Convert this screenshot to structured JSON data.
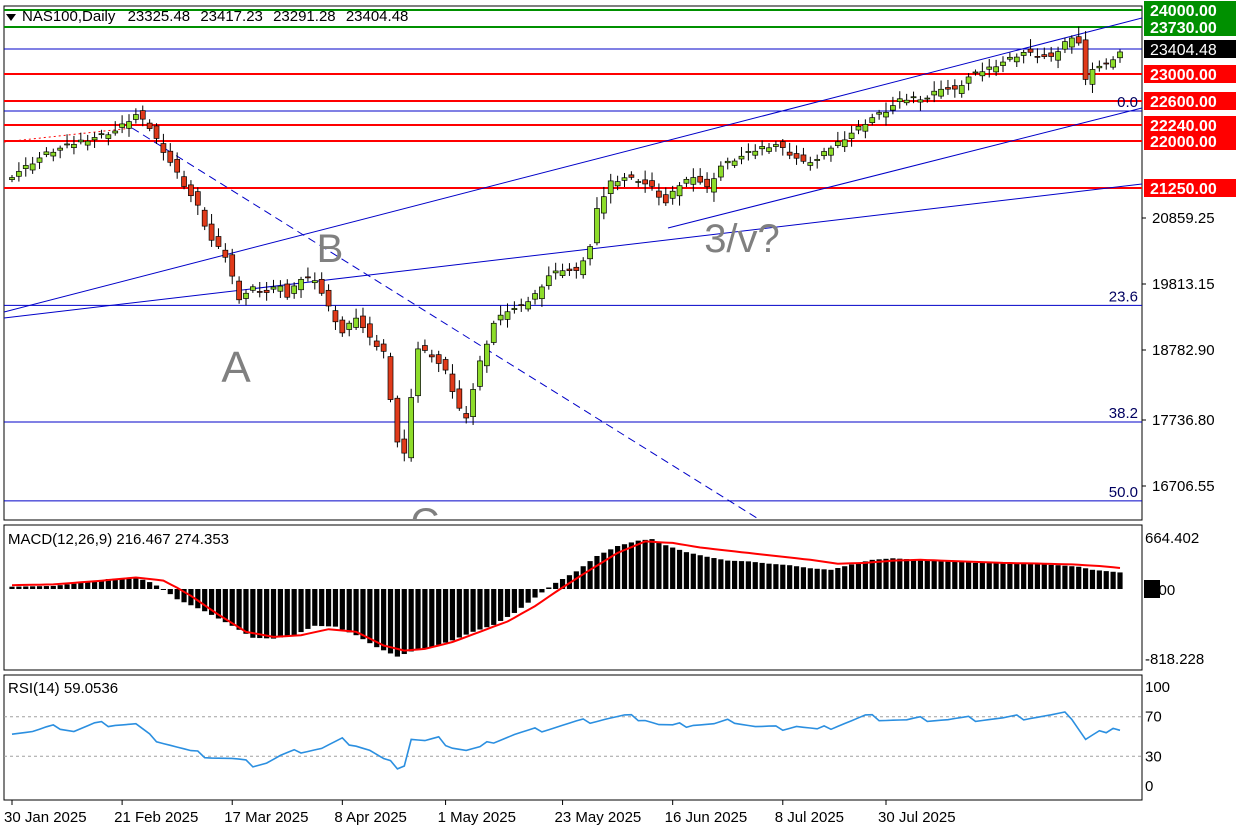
{
  "header": {
    "symbol": "NAS100,Daily",
    "ohlc": [
      "23325.48",
      "23417.23",
      "23291.28",
      "23404.48"
    ]
  },
  "colors": {
    "bull": "#8ddc2a",
    "bear": "#e03a1a",
    "level": "#ff0000",
    "resistance": "#009000",
    "trend": "#0000c8",
    "macd_signal": "#ff0000",
    "rsi": "#2b8fe0",
    "current": "#000000"
  },
  "chart_data": [
    {
      "type": "candlestick",
      "title": "NAS100,Daily",
      "ylim": [
        16450,
        24300
      ],
      "x_ticks": [
        "30 Jan 2025",
        "21 Feb 2025",
        "17 Mar 2025",
        "8 Apr 2025",
        "1 May 2025",
        "23 May 2025",
        "16 Jun 2025",
        "8 Jul 2025",
        "30 Jul 2025"
      ],
      "y_tick_labels": [
        "20859.25",
        "19813.15",
        "18782.90",
        "17736.80",
        "16706.55"
      ],
      "y_ticks": [
        20859.25,
        19813.15,
        18782.9,
        17736.8,
        16706.55
      ],
      "current_price": {
        "label": "23404.48",
        "value": 23404.48
      },
      "levels": [
        {
          "label": "24000.00",
          "value": 24000,
          "kind": "resistance"
        },
        {
          "label": "23730.00",
          "value": 23730,
          "kind": "resistance"
        },
        {
          "label": "23000.00",
          "value": 23000,
          "kind": "level"
        },
        {
          "label": "22600.00",
          "value": 22600,
          "kind": "level"
        },
        {
          "label": "22240.00",
          "value": 22240,
          "kind": "level"
        },
        {
          "label": "22000.00",
          "value": 22000,
          "kind": "level"
        },
        {
          "label": "21250.00",
          "value": 21250,
          "kind": "level"
        }
      ],
      "fib_levels": [
        {
          "label": "0.0",
          "value": 22450
        },
        {
          "label": "23.6",
          "value": 19480
        },
        {
          "label": "38.2",
          "value": 17705
        },
        {
          "label": "50.0",
          "value": 16560
        }
      ],
      "wave_labels": [
        "A",
        "B",
        "C",
        "3/v?"
      ],
      "close_path": [
        [
          0,
          21450
        ],
        [
          5,
          21800
        ],
        [
          10,
          22000
        ],
        [
          15,
          22150
        ],
        [
          18,
          22390
        ],
        [
          20,
          22200
        ],
        [
          22,
          21850
        ],
        [
          25,
          21300
        ],
        [
          27,
          21000
        ],
        [
          29,
          20500
        ],
        [
          31,
          20250
        ],
        [
          33,
          19600
        ],
        [
          35,
          19750
        ],
        [
          37,
          19680
        ],
        [
          39,
          19800
        ],
        [
          40,
          19600
        ],
        [
          42,
          19900
        ],
        [
          44,
          19900
        ],
        [
          46,
          19450
        ],
        [
          48,
          19050
        ],
        [
          50,
          19300
        ],
        [
          52,
          18950
        ],
        [
          54,
          18750
        ],
        [
          56,
          17400
        ],
        [
          57,
          17200
        ],
        [
          58,
          18100
        ],
        [
          59,
          18800
        ],
        [
          61,
          18700
        ],
        [
          63,
          18450
        ],
        [
          65,
          17900
        ],
        [
          66,
          17800
        ],
        [
          68,
          18600
        ],
        [
          70,
          19200
        ],
        [
          72,
          19400
        ],
        [
          74,
          19450
        ],
        [
          76,
          19650
        ],
        [
          78,
          19950
        ],
        [
          80,
          20050
        ],
        [
          82,
          20000
        ],
        [
          84,
          20400
        ],
        [
          85,
          20950
        ],
        [
          87,
          21350
        ],
        [
          89,
          21420
        ],
        [
          91,
          21380
        ],
        [
          93,
          21250
        ],
        [
          95,
          21050
        ],
        [
          97,
          21300
        ],
        [
          99,
          21450
        ],
        [
          101,
          21250
        ],
        [
          103,
          21600
        ],
        [
          105,
          21700
        ],
        [
          107,
          21800
        ],
        [
          109,
          21900
        ],
        [
          111,
          21950
        ],
        [
          113,
          21800
        ],
        [
          115,
          21650
        ],
        [
          117,
          21700
        ],
        [
          119,
          21900
        ],
        [
          121,
          22050
        ],
        [
          123,
          22200
        ],
        [
          125,
          22350
        ],
        [
          127,
          22450
        ],
        [
          129,
          22600
        ],
        [
          131,
          22650
        ],
        [
          133,
          22650
        ],
        [
          135,
          22800
        ],
        [
          137,
          22750
        ],
        [
          139,
          22950
        ],
        [
          141,
          23050
        ],
        [
          143,
          23150
        ],
        [
          145,
          23250
        ],
        [
          147,
          23350
        ],
        [
          149,
          23300
        ],
        [
          151,
          23250
        ],
        [
          153,
          23500
        ],
        [
          154,
          23600
        ],
        [
          155,
          23500
        ],
        [
          156,
          22900
        ],
        [
          157,
          23100
        ],
        [
          159,
          23150
        ],
        [
          161,
          23350
        ]
      ],
      "candle_count": 162
    },
    {
      "type": "bar",
      "title": "MACD(12,26,9)",
      "values_text": [
        "216.467",
        "274.353"
      ],
      "y_tick_labels": [
        "664.402",
        "0.00",
        "-818.228"
      ],
      "ylim": [
        -900,
        760
      ],
      "histogram_path": [
        [
          0,
          30
        ],
        [
          6,
          40
        ],
        [
          10,
          80
        ],
        [
          14,
          130
        ],
        [
          18,
          150
        ],
        [
          20,
          90
        ],
        [
          22,
          0
        ],
        [
          24,
          -120
        ],
        [
          28,
          -260
        ],
        [
          32,
          -430
        ],
        [
          35,
          -570
        ],
        [
          38,
          -580
        ],
        [
          41,
          -540
        ],
        [
          44,
          -430
        ],
        [
          47,
          -440
        ],
        [
          50,
          -540
        ],
        [
          53,
          -680
        ],
        [
          56,
          -790
        ],
        [
          58,
          -730
        ],
        [
          61,
          -680
        ],
        [
          64,
          -600
        ],
        [
          67,
          -500
        ],
        [
          70,
          -420
        ],
        [
          73,
          -280
        ],
        [
          76,
          -100
        ],
        [
          79,
          80
        ],
        [
          82,
          230
        ],
        [
          85,
          430
        ],
        [
          88,
          560
        ],
        [
          91,
          630
        ],
        [
          93,
          650
        ],
        [
          95,
          570
        ],
        [
          98,
          480
        ],
        [
          101,
          420
        ],
        [
          104,
          370
        ],
        [
          107,
          360
        ],
        [
          110,
          330
        ],
        [
          113,
          310
        ],
        [
          116,
          270
        ],
        [
          119,
          250
        ],
        [
          122,
          320
        ],
        [
          125,
          380
        ],
        [
          128,
          400
        ],
        [
          132,
          380
        ],
        [
          136,
          370
        ],
        [
          140,
          340
        ],
        [
          144,
          340
        ],
        [
          148,
          330
        ],
        [
          152,
          310
        ],
        [
          155,
          290
        ],
        [
          157,
          250
        ],
        [
          161,
          216
        ]
      ],
      "signal_path": [
        [
          0,
          50
        ],
        [
          6,
          60
        ],
        [
          12,
          100
        ],
        [
          18,
          150
        ],
        [
          22,
          110
        ],
        [
          26,
          -80
        ],
        [
          30,
          -300
        ],
        [
          34,
          -500
        ],
        [
          38,
          -560
        ],
        [
          42,
          -540
        ],
        [
          46,
          -470
        ],
        [
          50,
          -500
        ],
        [
          54,
          -660
        ],
        [
          57,
          -720
        ],
        [
          60,
          -700
        ],
        [
          64,
          -620
        ],
        [
          68,
          -500
        ],
        [
          72,
          -380
        ],
        [
          76,
          -200
        ],
        [
          80,
          20
        ],
        [
          84,
          250
        ],
        [
          88,
          470
        ],
        [
          92,
          620
        ],
        [
          96,
          600
        ],
        [
          100,
          540
        ],
        [
          104,
          500
        ],
        [
          108,
          460
        ],
        [
          112,
          420
        ],
        [
          116,
          380
        ],
        [
          120,
          330
        ],
        [
          124,
          340
        ],
        [
          128,
          370
        ],
        [
          132,
          380
        ],
        [
          138,
          360
        ],
        [
          144,
          340
        ],
        [
          150,
          330
        ],
        [
          154,
          320
        ],
        [
          158,
          300
        ],
        [
          161,
          274
        ]
      ]
    },
    {
      "type": "line",
      "title": "RSI(14)",
      "value_text": "59.0536",
      "ylim": [
        0,
        100
      ],
      "y_tick_labels": [
        "100",
        "70",
        "30",
        "0"
      ],
      "y_ticks": [
        100,
        70,
        30,
        0
      ],
      "dashed_levels": [
        70,
        30
      ],
      "series": [
        {
          "values_path": [
            [
              0,
              55
            ],
            [
              3,
              55
            ],
            [
              5,
              58
            ],
            [
              7,
              60
            ],
            [
              9,
              56
            ],
            [
              12,
              62
            ],
            [
              15,
              63
            ],
            [
              18,
              62
            ],
            [
              20,
              50
            ],
            [
              23,
              42
            ],
            [
              26,
              34
            ],
            [
              29,
              30
            ],
            [
              32,
              27
            ],
            [
              35,
              22
            ],
            [
              37,
              24
            ],
            [
              39,
              30
            ],
            [
              42,
              36
            ],
            [
              45,
              38
            ],
            [
              48,
              46
            ],
            [
              50,
              42
            ],
            [
              52,
              36
            ],
            [
              54,
              26
            ],
            [
              56,
              20
            ],
            [
              57,
              22
            ],
            [
              58,
              48
            ],
            [
              60,
              45
            ],
            [
              62,
              47
            ],
            [
              64,
              40
            ],
            [
              66,
              36
            ],
            [
              68,
              38
            ],
            [
              70,
              46
            ],
            [
              73,
              52
            ],
            [
              76,
              56
            ],
            [
              79,
              60
            ],
            [
              82,
              64
            ],
            [
              86,
              68
            ],
            [
              89,
              70
            ],
            [
              92,
              68
            ],
            [
              94,
              62
            ],
            [
              96,
              60
            ],
            [
              99,
              63
            ],
            [
              102,
              62
            ],
            [
              105,
              66
            ],
            [
              108,
              60
            ],
            [
              111,
              58
            ],
            [
              114,
              61
            ],
            [
              117,
              56
            ],
            [
              120,
              62
            ],
            [
              124,
              70
            ],
            [
              127,
              68
            ],
            [
              130,
              66
            ],
            [
              133,
              68
            ],
            [
              136,
              67
            ],
            [
              140,
              68
            ],
            [
              144,
              68
            ],
            [
              148,
              70
            ],
            [
              151,
              71
            ],
            [
              153,
              72
            ],
            [
              154,
              70
            ],
            [
              156,
              48
            ],
            [
              158,
              55
            ],
            [
              159,
              52
            ],
            [
              161,
              59
            ]
          ]
        }
      ]
    }
  ]
}
